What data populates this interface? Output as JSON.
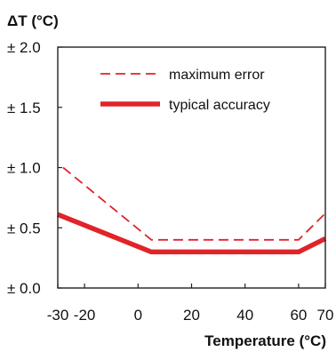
{
  "chart_data": {
    "type": "line",
    "ylabel": "ΔT (°C)",
    "xlabel": "Temperature (°C)",
    "xlim": [
      -30,
      70
    ],
    "ylim": [
      0,
      2
    ],
    "x_ticks": [
      -30,
      -20,
      0,
      20,
      40,
      60,
      70
    ],
    "x_tick_labels": [
      "-30",
      "-20",
      "0",
      "20",
      "40",
      "60",
      "70"
    ],
    "y_ticks": [
      0,
      0.5,
      1,
      1.5,
      2
    ],
    "y_tick_labels": [
      "± 0.0",
      "± 0.5",
      "± 1.0",
      "± 1.5",
      "± 2.0"
    ],
    "grid": false,
    "legend_position": "top-right",
    "series": [
      {
        "name": "maximum error",
        "style": "dashed",
        "color": "#e0242a",
        "points": [
          [
            -28,
            1.0
          ],
          [
            5,
            0.4
          ],
          [
            60,
            0.4
          ],
          [
            70,
            0.62
          ]
        ]
      },
      {
        "name": "typical accuracy",
        "style": "solid-thick",
        "color": "#e0242a",
        "points": [
          [
            -30,
            0.61
          ],
          [
            5,
            0.3
          ],
          [
            60,
            0.3
          ],
          [
            70,
            0.41
          ]
        ]
      }
    ]
  }
}
